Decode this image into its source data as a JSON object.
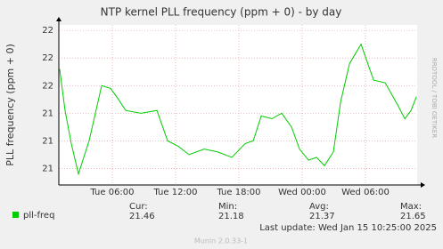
{
  "chart_data": {
    "type": "line",
    "title": "NTP kernel PLL frequency (ppm + 0) - by day",
    "y_label": "PLL frequency (ppm + 0)",
    "watermark": "RRDTOOL / TOBI OETIKER",
    "x": [
      1.01,
      1.52,
      2.11,
      2.79,
      3.8,
      4.99,
      5.83,
      6.59,
      7.27,
      8.71,
      10.23,
      11.24,
      12.26,
      13.27,
      14.71,
      15.97,
      17.33,
      18.6,
      19.36,
      20.12,
      21.13,
      22.06,
      22.99,
      23.75,
      24.6,
      25.36,
      26.12,
      26.96,
      27.64,
      28.49,
      29.58,
      30.77,
      31.87,
      33.05,
      33.73,
      34.32,
      34.83
    ],
    "series": [
      {
        "name": "pll-freq",
        "color": "#00cc00",
        "values": [
          21.56,
          21.41,
          21.29,
          21.18,
          21.3,
          21.5,
          21.49,
          21.45,
          21.41,
          21.4,
          21.41,
          21.3,
          21.28,
          21.25,
          21.27,
          21.26,
          21.24,
          21.29,
          21.3,
          21.39,
          21.38,
          21.4,
          21.35,
          21.27,
          21.23,
          21.24,
          21.21,
          21.26,
          21.44,
          21.58,
          21.65,
          21.52,
          21.51,
          21.43,
          21.38,
          21.41,
          21.46
        ]
      }
    ],
    "xlim": [
      0.93,
      34.9
    ],
    "xticks": [
      {
        "value": 6,
        "label": "Tue 06:00"
      },
      {
        "value": 12,
        "label": "Tue 12:00"
      },
      {
        "value": 18,
        "label": "Tue 18:00"
      },
      {
        "value": 24,
        "label": "Wed 00:00"
      },
      {
        "value": 30,
        "label": "Wed 06:00"
      }
    ],
    "ylim": [
      21.14,
      21.72
    ],
    "yticks": [
      {
        "value": 21.2,
        "label": "21"
      },
      {
        "value": 21.3,
        "label": "21"
      },
      {
        "value": 21.4,
        "label": "21"
      },
      {
        "value": 21.5,
        "label": "22"
      },
      {
        "value": 21.6,
        "label": "22"
      },
      {
        "value": 21.7,
        "label": "22"
      }
    ],
    "grid": true,
    "stats": [
      {
        "label": "Cur:",
        "value": 21.46
      },
      {
        "label": "Min:",
        "value": 21.18
      },
      {
        "label": "Avg:",
        "value": 21.37
      },
      {
        "label": "Max:",
        "value": 21.65
      }
    ],
    "last_update": "Last update: Wed Jan 15 10:25:00 2025",
    "footer": "Munin 2.0.33-1"
  }
}
